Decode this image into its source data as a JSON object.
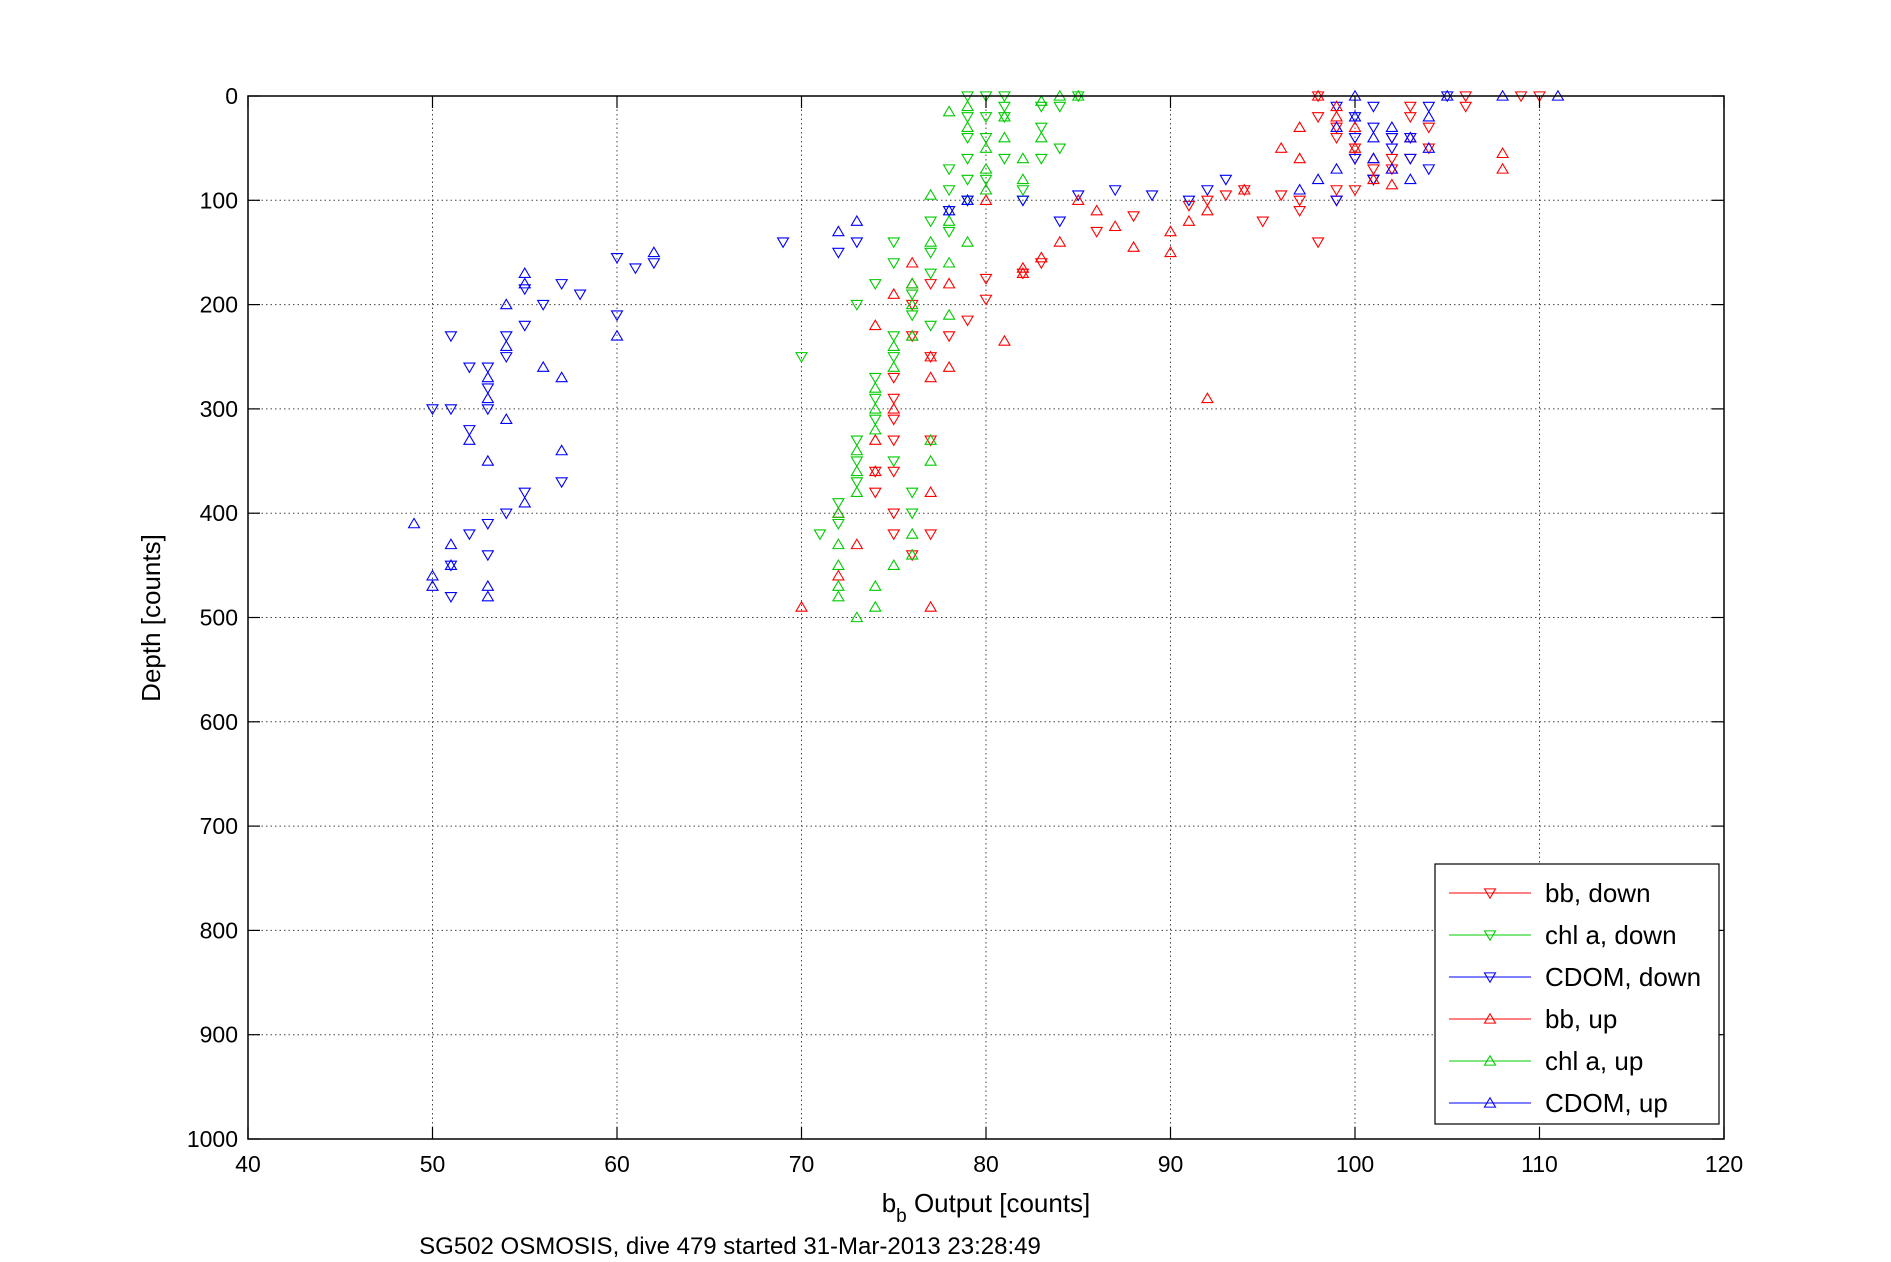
{
  "chart_data": {
    "type": "scatter",
    "xlabel_main": "b",
    "xlabel_sub": "b",
    "xlabel_rest": " Output [counts]",
    "ylabel": "Depth [counts]",
    "caption": "SG502 OSMOSIS, dive 479 started 31-Mar-2013 23:28:49",
    "xlim": [
      40,
      120
    ],
    "ylim": [
      0,
      1000
    ],
    "y_reversed": true,
    "grid": true,
    "grid_style": "dotted",
    "legend_position": "bottom-right",
    "xticks": [
      "40",
      "50",
      "60",
      "70",
      "80",
      "90",
      "100",
      "110",
      "120"
    ],
    "yticks": [
      "0",
      "100",
      "200",
      "300",
      "400",
      "500",
      "600",
      "700",
      "800",
      "900",
      "1000"
    ],
    "series": [
      {
        "name": "bb, down",
        "color": "#ff0000",
        "marker": "triangle-down",
        "x": [
          98,
          98,
          99,
          99,
          100,
          100,
          101,
          101,
          102,
          102,
          103,
          103,
          104,
          104,
          106,
          106,
          99,
          98,
          97,
          97,
          96,
          95,
          94,
          93,
          92,
          91,
          88,
          86,
          83,
          82,
          80,
          80,
          79,
          78,
          77,
          77,
          76,
          76,
          75,
          75,
          75,
          75,
          74,
          74,
          75,
          77,
          75,
          75,
          76,
          77,
          99,
          100,
          101,
          102,
          103,
          109,
          110
        ],
        "y": [
          0,
          20,
          30,
          40,
          50,
          60,
          70,
          80,
          60,
          40,
          20,
          10,
          30,
          50,
          0,
          10,
          90,
          140,
          110,
          100,
          95,
          120,
          90,
          95,
          100,
          105,
          115,
          130,
          160,
          170,
          175,
          195,
          215,
          230,
          250,
          180,
          200,
          230,
          270,
          290,
          310,
          330,
          360,
          380,
          400,
          330,
          360,
          420,
          440,
          420,
          100,
          90,
          80,
          70,
          60,
          0,
          0
        ]
      },
      {
        "name": "chl a, down",
        "color": "#00cc00",
        "marker": "triangle-down",
        "x": [
          79,
          79,
          79,
          79,
          80,
          80,
          80,
          80,
          81,
          81,
          81,
          82,
          82,
          83,
          83,
          83,
          84,
          84,
          85,
          79,
          78,
          78,
          77,
          77,
          76,
          76,
          75,
          75,
          74,
          74,
          74,
          73,
          73,
          73,
          72,
          72,
          71,
          70,
          73,
          74,
          75,
          75,
          75,
          76,
          76,
          77,
          77,
          78,
          78,
          79,
          81
        ],
        "y": [
          0,
          20,
          40,
          60,
          0,
          20,
          40,
          80,
          0,
          20,
          60,
          90,
          100,
          10,
          30,
          60,
          10,
          50,
          0,
          100,
          110,
          130,
          150,
          170,
          190,
          210,
          230,
          250,
          270,
          290,
          310,
          330,
          350,
          370,
          390,
          410,
          420,
          250,
          200,
          180,
          160,
          140,
          350,
          380,
          400,
          220,
          120,
          90,
          70,
          80,
          10
        ],
        "_note": ""
      },
      {
        "name": "CDOM, down",
        "color": "#0000ff",
        "marker": "triangle-down",
        "x": [
          99,
          100,
          100,
          101,
          101,
          102,
          103,
          104,
          105,
          104,
          103,
          102,
          101,
          100,
          99,
          93,
          92,
          91,
          89,
          87,
          85,
          84,
          82,
          79,
          78,
          73,
          72,
          69,
          62,
          61,
          60,
          60,
          58,
          57,
          56,
          55,
          55,
          54,
          54,
          53,
          53,
          53,
          52,
          52,
          51,
          51,
          50,
          51,
          51,
          52,
          53,
          53,
          54,
          55,
          57
        ],
        "y": [
          10,
          20,
          40,
          10,
          30,
          50,
          40,
          10,
          0,
          70,
          60,
          40,
          80,
          60,
          100,
          80,
          90,
          100,
          95,
          90,
          95,
          120,
          100,
          100,
          110,
          140,
          150,
          140,
          160,
          165,
          155,
          210,
          190,
          180,
          200,
          185,
          220,
          230,
          250,
          260,
          280,
          300,
          320,
          260,
          230,
          300,
          300,
          450,
          480,
          420,
          410,
          440,
          400,
          380,
          370
        ],
        "_note": ""
      },
      {
        "name": "bb, up",
        "color": "#ff0000",
        "marker": "triangle-up",
        "x": [
          98,
          99,
          99,
          100,
          100,
          101,
          101,
          102,
          102,
          103,
          108,
          108,
          97,
          97,
          96,
          94,
          92,
          91,
          90,
          90,
          88,
          87,
          86,
          85,
          84,
          83,
          82,
          82,
          81,
          80,
          78,
          78,
          77,
          77,
          76,
          76,
          76,
          75,
          74,
          74,
          75,
          74,
          73,
          72,
          72,
          70,
          77,
          77,
          92
        ],
        "y": [
          0,
          10,
          20,
          30,
          50,
          60,
          80,
          70,
          85,
          40,
          55,
          70,
          30,
          60,
          50,
          90,
          110,
          120,
          130,
          150,
          145,
          125,
          110,
          100,
          140,
          155,
          165,
          170,
          235,
          100,
          180,
          260,
          270,
          250,
          230,
          180,
          160,
          190,
          220,
          330,
          300,
          360,
          430,
          460,
          400,
          490,
          490,
          380,
          290
        ],
        "_note": ""
      },
      {
        "name": "chl a, up",
        "color": "#00cc00",
        "marker": "triangle-up",
        "x": [
          79,
          79,
          80,
          80,
          81,
          81,
          82,
          82,
          83,
          83,
          84,
          85,
          78,
          78,
          77,
          77,
          76,
          76,
          76,
          75,
          75,
          74,
          74,
          74,
          73,
          73,
          73,
          72,
          72,
          72,
          72,
          72,
          73,
          74,
          74,
          75,
          76,
          76,
          77,
          77,
          78,
          78,
          79,
          79,
          80
        ],
        "y": [
          10,
          30,
          50,
          70,
          20,
          40,
          60,
          80,
          5,
          40,
          0,
          0,
          15,
          120,
          95,
          140,
          180,
          200,
          230,
          240,
          260,
          280,
          300,
          320,
          340,
          360,
          380,
          400,
          430,
          450,
          470,
          480,
          500,
          490,
          470,
          450,
          440,
          420,
          350,
          330,
          210,
          160,
          140,
          100,
          90
        ],
        "_note": ""
      },
      {
        "name": "CDOM, up",
        "color": "#0000ff",
        "marker": "triangle-up",
        "x": [
          100,
          100,
          101,
          101,
          102,
          102,
          103,
          103,
          104,
          104,
          105,
          111,
          108,
          99,
          99,
          98,
          97,
          79,
          78,
          73,
          72,
          62,
          60,
          57,
          56,
          55,
          55,
          54,
          54,
          53,
          53,
          52,
          51,
          51,
          50,
          50,
          49,
          53,
          53,
          54,
          53,
          55,
          57
        ],
        "y": [
          0,
          20,
          40,
          60,
          30,
          70,
          40,
          80,
          20,
          50,
          0,
          0,
          0,
          30,
          70,
          80,
          90,
          100,
          110,
          120,
          130,
          150,
          230,
          270,
          260,
          170,
          180,
          200,
          240,
          270,
          290,
          330,
          430,
          450,
          460,
          470,
          410,
          470,
          480,
          310,
          350,
          390,
          340
        ]
      }
    ]
  }
}
